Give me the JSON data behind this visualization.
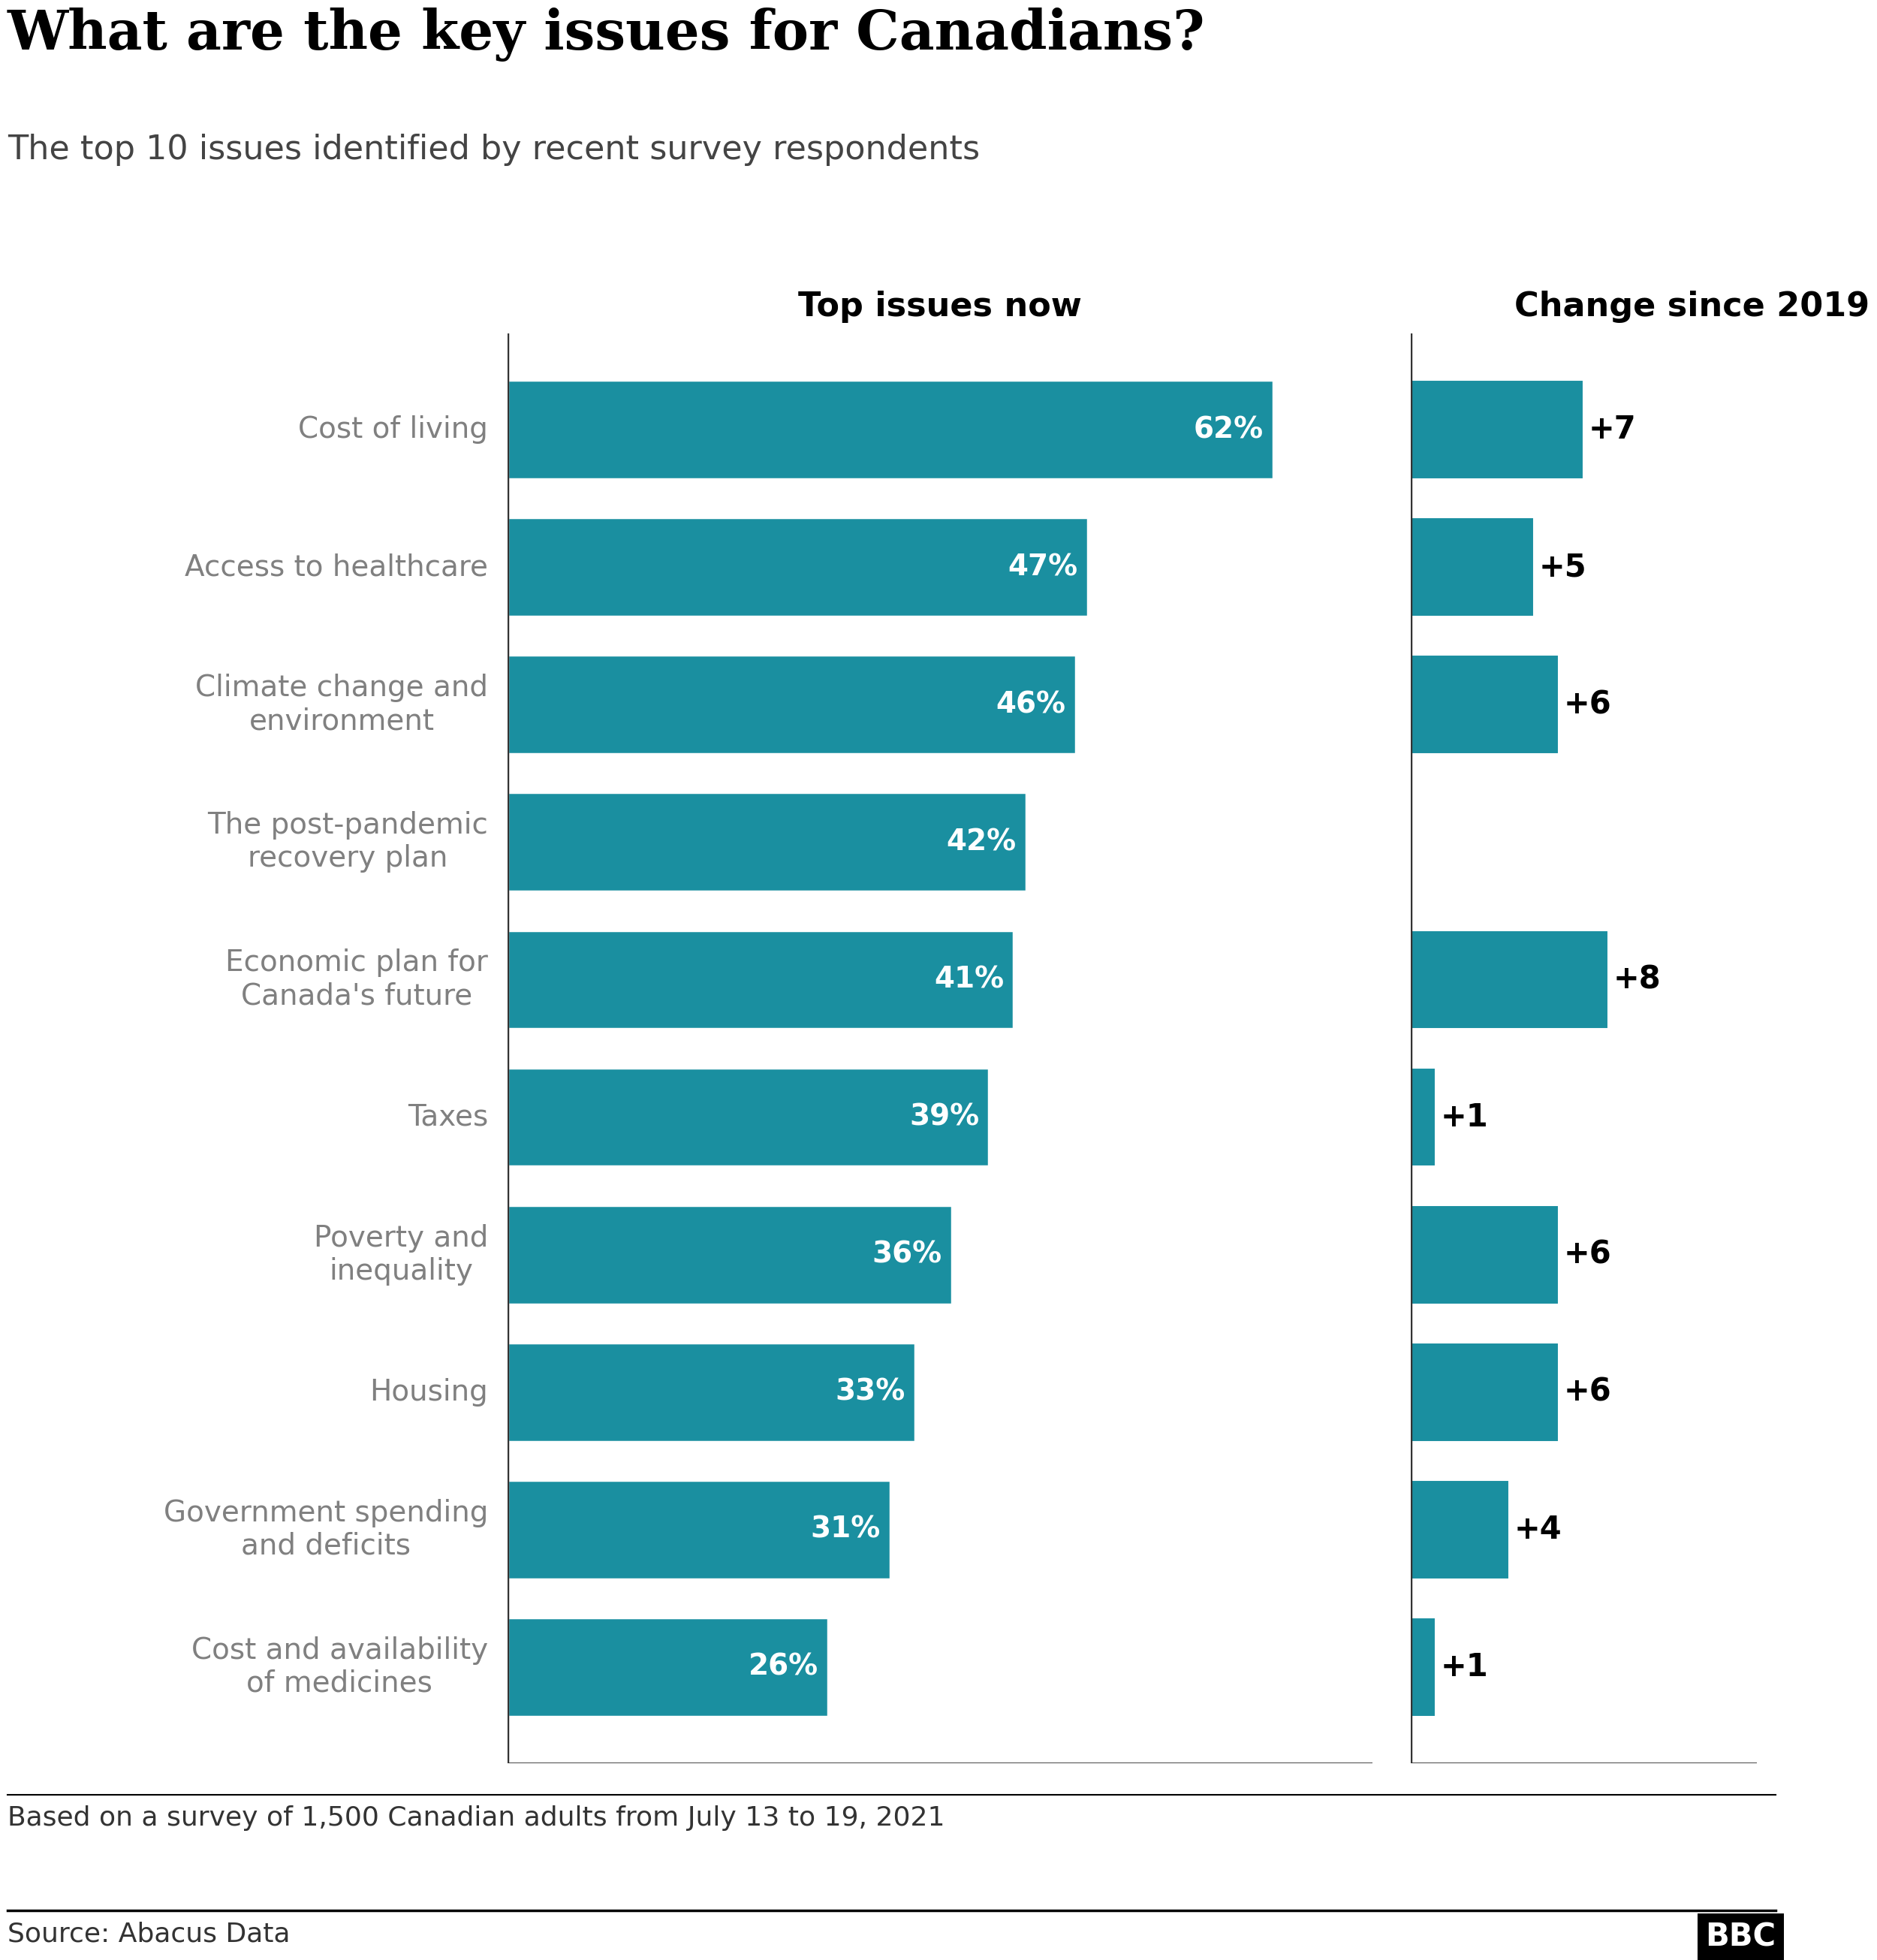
{
  "title": "What are the key issues for Canadians?",
  "subtitle": "The top 10 issues identified by recent survey respondents",
  "col1_header": "Top issues now",
  "col2_header": "Change since 2019",
  "categories": [
    "Cost of living",
    "Access to healthcare",
    "Climate change and\nenvironment",
    "The post-pandemic\nrecovery plan",
    "Economic plan for\nCanada's future",
    "Taxes",
    "Poverty and\ninequality",
    "Housing",
    "Government spending\nand deficits",
    "Cost and availability\nof medicines"
  ],
  "values": [
    62,
    47,
    46,
    42,
    41,
    39,
    36,
    33,
    31,
    26
  ],
  "changes": [
    7,
    5,
    6,
    0,
    8,
    1,
    6,
    6,
    4,
    1
  ],
  "bar_color": "#1a8fa0",
  "label_color": "#ffffff",
  "category_color": "#808080",
  "change_label_color": "#000000",
  "title_color": "#000000",
  "subtitle_color": "#444444",
  "header_color": "#000000",
  "footnote_color": "#333333",
  "source_color": "#333333",
  "vline_color": "#333333",
  "hline_color": "#000000",
  "background_color": "#ffffff",
  "title_fontsize": 52,
  "subtitle_fontsize": 32,
  "header_fontsize": 32,
  "bar_label_fontsize": 28,
  "category_fontsize": 28,
  "change_label_fontsize": 30,
  "footnote_fontsize": 26,
  "source_fontsize": 26,
  "bbc_fontsize": 28,
  "footnote": "Based on a survey of 1,500 Canadian adults from July 13 to 19, 2021",
  "source": "Source: Abacus Data"
}
